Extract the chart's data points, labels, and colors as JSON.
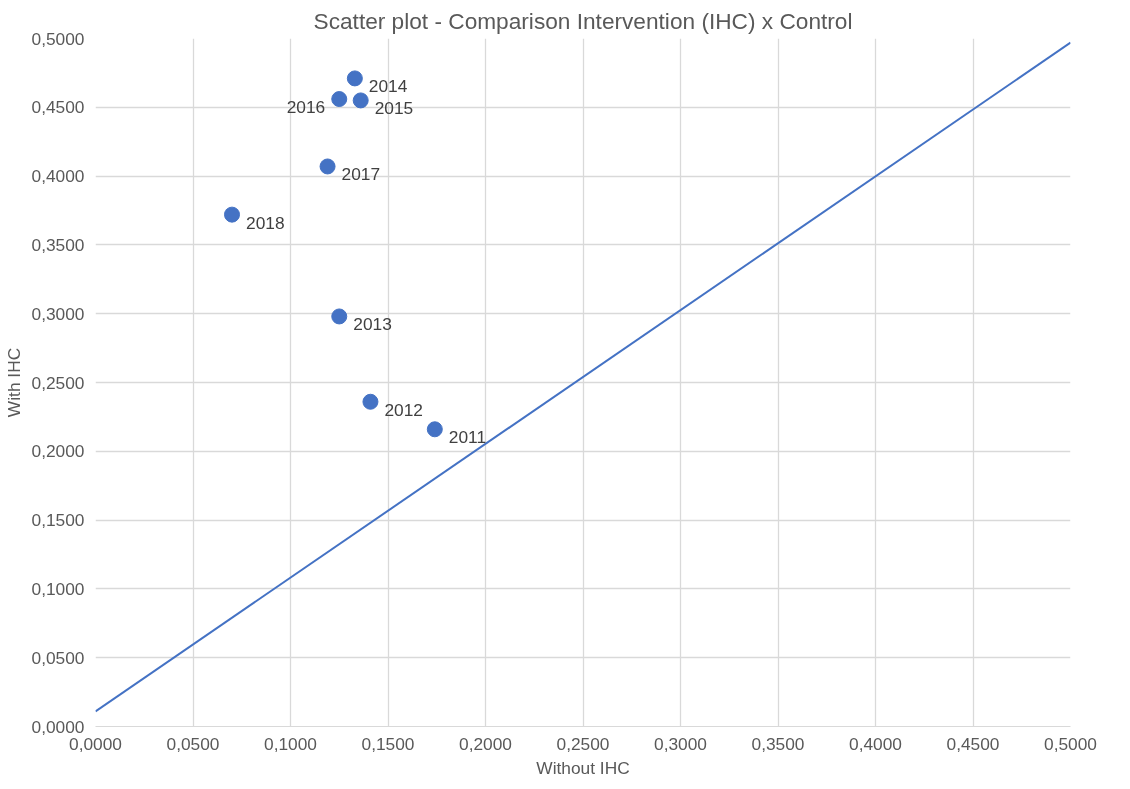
{
  "chart_data": {
    "type": "scatter",
    "title": "Scatter plot - Comparison Intervention (IHC) x Control",
    "xlabel": "Without IHC",
    "ylabel": "With IHC",
    "xlim": [
      0,
      0.5
    ],
    "ylim": [
      0,
      0.5
    ],
    "xticks": [
      {
        "value": 0,
        "label": "0,0000"
      },
      {
        "value": 0.05,
        "label": "0,0500"
      },
      {
        "value": 0.1,
        "label": "0,1000"
      },
      {
        "value": 0.15,
        "label": "0,1500"
      },
      {
        "value": 0.2,
        "label": "0,2000"
      },
      {
        "value": 0.25,
        "label": "0,2500"
      },
      {
        "value": 0.3,
        "label": "0,3000"
      },
      {
        "value": 0.35,
        "label": "0,3500"
      },
      {
        "value": 0.4,
        "label": "0,4000"
      },
      {
        "value": 0.45,
        "label": "0,4500"
      },
      {
        "value": 0.5,
        "label": "0,5000"
      }
    ],
    "yticks": [
      {
        "value": 0,
        "label": "0,0000"
      },
      {
        "value": 0.05,
        "label": "0,0500"
      },
      {
        "value": 0.1,
        "label": "0,1000"
      },
      {
        "value": 0.15,
        "label": "0,1500"
      },
      {
        "value": 0.2,
        "label": "0,2000"
      },
      {
        "value": 0.25,
        "label": "0,2500"
      },
      {
        "value": 0.3,
        "label": "0,3000"
      },
      {
        "value": 0.35,
        "label": "0,3500"
      },
      {
        "value": 0.4,
        "label": "0,4000"
      },
      {
        "value": 0.45,
        "label": "0,4500"
      },
      {
        "value": 0.5,
        "label": "0,5000"
      }
    ],
    "grid": true,
    "annotations": [
      {
        "text": "2011",
        "x": 0.174,
        "y": 0.216
      },
      {
        "text": "2012",
        "x": 0.141,
        "y": 0.236
      },
      {
        "text": "2013",
        "x": 0.125,
        "y": 0.298
      },
      {
        "text": "2014",
        "x": 0.133,
        "y": 0.471
      },
      {
        "text": "2015",
        "x": 0.136,
        "y": 0.455
      },
      {
        "text": "2016",
        "x": 0.125,
        "y": 0.456
      },
      {
        "text": "2017",
        "x": 0.119,
        "y": 0.407
      },
      {
        "text": "2018",
        "x": 0.07,
        "y": 0.372
      }
    ],
    "series": [
      {
        "color": "#4472c4",
        "marker": "circle",
        "x": [
          0.174,
          0.141,
          0.125,
          0.133,
          0.136,
          0.125,
          0.119,
          0.07
        ],
        "values": [
          0.216,
          0.236,
          0.298,
          0.471,
          0.455,
          0.456,
          0.407,
          0.372
        ]
      },
      {
        "type": "line",
        "marker": "none",
        "color": "#4472c4",
        "x": [
          0,
          0.5
        ],
        "values": [
          0.011,
          0.497
        ]
      }
    ]
  }
}
